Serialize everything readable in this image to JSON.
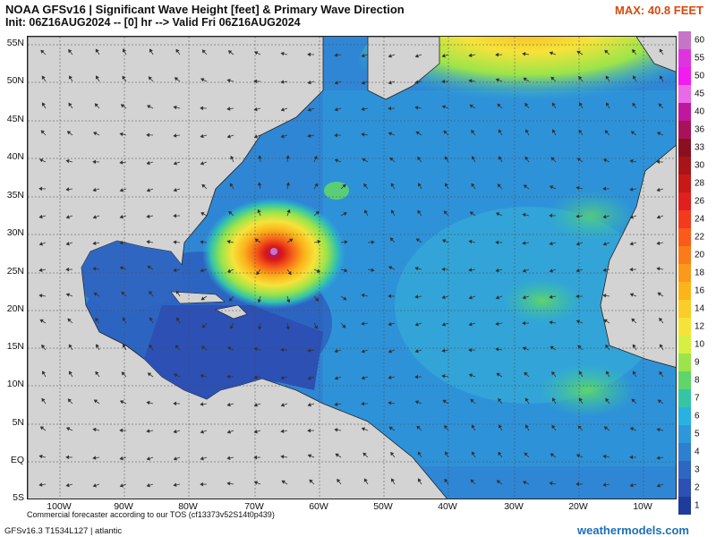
{
  "header": {
    "title": "NOAA GFSv16 | Significant Wave Height [feet] & Primary Wave Direction",
    "init": "Init: 06Z16AUG2024 -- [0] hr --> Valid Fri 06Z16AUG2024",
    "max": "MAX: 40.8 FEET"
  },
  "lat_labels": [
    "55N",
    "50N",
    "45N",
    "40N",
    "35N",
    "30N",
    "25N",
    "20N",
    "15N",
    "10N",
    "5N",
    "EQ",
    "5S"
  ],
  "lon_labels": [
    "100W",
    "90W",
    "80W",
    "70W",
    "60W",
    "50W",
    "40W",
    "30W",
    "20W",
    "10W"
  ],
  "colorbar": {
    "labels": [
      "60",
      "55",
      "50",
      "45",
      "40",
      "36",
      "33",
      "30",
      "28",
      "26",
      "24",
      "22",
      "20",
      "18",
      "16",
      "14",
      "12",
      "10",
      "9",
      "8",
      "7",
      "6",
      "5",
      "4",
      "3",
      "2",
      "1"
    ],
    "colors": [
      "#c774c7",
      "#e033e0",
      "#f01cf0",
      "#e86ae8",
      "#c0189c",
      "#a8125a",
      "#8a1020",
      "#a8141a",
      "#c81818",
      "#e11f1f",
      "#f43a1d",
      "#fb5a1a",
      "#fb7a1a",
      "#fb991a",
      "#fbb51a",
      "#fbcd28",
      "#f6e33a",
      "#d7ef41",
      "#9be44a",
      "#5fd56a",
      "#35c5a6",
      "#29b2e0",
      "#2e97dc",
      "#2f7fd0",
      "#2f66c2",
      "#2c50b4",
      "#1f3c9c"
    ]
  },
  "footer": {
    "tos": "Commercial forecaster according to our TOS (cf13373v52S14t0p439)",
    "model": "GFSv16.3 T1534L127 | atlantic",
    "brand": "weathermodels.com"
  }
}
